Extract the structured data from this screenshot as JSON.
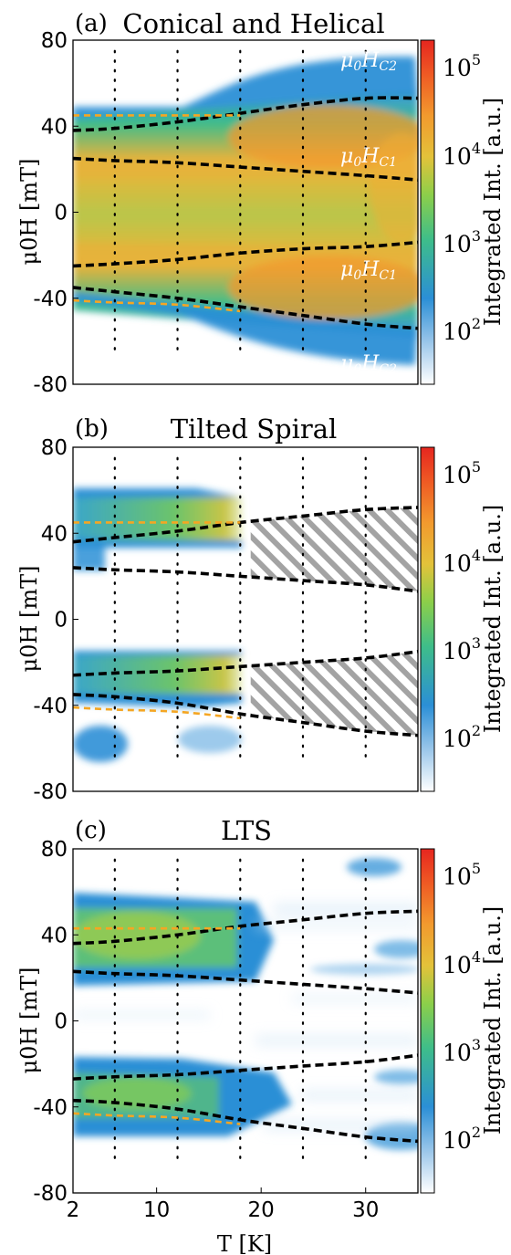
{
  "chart_data": [
    {
      "type": "heatmap",
      "panel": "(a)",
      "title": "Conical and Helical",
      "xlabel": "T [K]",
      "ylabel": "μ0H [mT]",
      "xlim": [
        2,
        35
      ],
      "ylim": [
        -80,
        80
      ],
      "xticks": [
        2,
        10,
        20,
        30
      ],
      "yticks": [
        80,
        40,
        0,
        -40,
        -80
      ],
      "colorbar": {
        "label": "Integrated Int. [a.u.]",
        "scale": "log",
        "ticks": [
          "10^5",
          "10^4",
          "10^3",
          "10^2"
        ]
      },
      "temperatures": [
        6,
        12,
        18,
        24,
        30
      ],
      "annotations": [
        {
          "text": "μ0HC2",
          "x": 31,
          "y": 62
        },
        {
          "text": "μ0HC1",
          "x": 31,
          "y": 33
        },
        {
          "text": "μ0HC1",
          "x": 31,
          "y": -30
        },
        {
          "text": "μ0HC2",
          "x": 31,
          "y": -66
        }
      ],
      "series": [
        {
          "color": "#000000",
          "x": [
            2,
            6,
            12,
            18,
            24,
            30,
            35
          ],
          "y": [
            38,
            39,
            42,
            46,
            50,
            53,
            53
          ]
        },
        {
          "color": "#000000",
          "x": [
            2,
            6,
            12,
            18,
            24,
            30,
            35
          ],
          "y": [
            25,
            24,
            23,
            21,
            19,
            17,
            15
          ]
        },
        {
          "color": "#000000",
          "x": [
            2,
            6,
            12,
            18,
            24,
            30,
            35
          ],
          "y": [
            -25,
            -24,
            -22,
            -19,
            -17,
            -16,
            -14
          ]
        },
        {
          "color": "#000000",
          "x": [
            2,
            6,
            12,
            18,
            24,
            30,
            35
          ],
          "y": [
            -35,
            -37,
            -40,
            -44,
            -48,
            -52,
            -54
          ]
        },
        {
          "color": "#f5a623",
          "x": [
            2,
            6,
            12,
            18
          ],
          "y": [
            45,
            45,
            45,
            45
          ]
        },
        {
          "color": "#f5a623",
          "x": [
            2,
            6,
            12,
            18
          ],
          "y": [
            -41,
            -42,
            -43,
            -46
          ]
        }
      ]
    },
    {
      "type": "heatmap",
      "panel": "(b)",
      "title": "Tilted Spiral",
      "xlabel": "",
      "ylabel": "μ0H [mT]",
      "xlim": [
        2,
        35
      ],
      "ylim": [
        -80,
        80
      ],
      "xticks": [
        2,
        10,
        20,
        30
      ],
      "yticks": [
        80,
        40,
        0,
        -40,
        -80
      ],
      "colorbar": {
        "label": "Integrated Int. [a.u.]",
        "scale": "log",
        "ticks": [
          "10^5",
          "10^4",
          "10^3",
          "10^2"
        ]
      },
      "temperatures": [
        6,
        12,
        18,
        24,
        30
      ],
      "series": [
        {
          "color": "#000000",
          "x": [
            2,
            6,
            12,
            18,
            24,
            30,
            35
          ],
          "y": [
            36,
            38,
            41,
            45,
            48,
            51,
            52
          ]
        },
        {
          "color": "#000000",
          "x": [
            2,
            6,
            12,
            18,
            24,
            30,
            35
          ],
          "y": [
            24,
            23,
            22,
            20,
            18,
            16,
            13
          ]
        },
        {
          "color": "#000000",
          "x": [
            2,
            6,
            12,
            18,
            24,
            30,
            35
          ],
          "y": [
            -26,
            -25,
            -24,
            -22,
            -20,
            -18,
            -15
          ]
        },
        {
          "color": "#000000",
          "x": [
            2,
            6,
            12,
            18,
            24,
            30,
            35
          ],
          "y": [
            -35,
            -36,
            -39,
            -44,
            -48,
            -52,
            -54
          ]
        },
        {
          "color": "#f5a623",
          "x": [
            2,
            6,
            12,
            18
          ],
          "y": [
            45,
            45,
            45,
            45
          ]
        },
        {
          "color": "#f5a623",
          "x": [
            2,
            6,
            12,
            18
          ],
          "y": [
            -41,
            -42,
            -43,
            -46
          ]
        }
      ]
    },
    {
      "type": "heatmap",
      "panel": "(c)",
      "title": "LTS",
      "xlabel": "T [K]",
      "ylabel": "μ0H [mT]",
      "xlim": [
        2,
        35
      ],
      "ylim": [
        -80,
        80
      ],
      "xticks": [
        2,
        10,
        20,
        30
      ],
      "yticks": [
        80,
        40,
        0,
        -40,
        -80
      ],
      "colorbar": {
        "label": "Integrated Int. [a.u.]",
        "scale": "log",
        "ticks": [
          "10^5",
          "10^4",
          "10^3",
          "10^2"
        ]
      },
      "temperatures": [
        6,
        12,
        18,
        24,
        30
      ],
      "series": [
        {
          "color": "#000000",
          "x": [
            2,
            6,
            12,
            18,
            24,
            30,
            35
          ],
          "y": [
            36,
            37,
            40,
            44,
            47,
            50,
            51
          ]
        },
        {
          "color": "#000000",
          "x": [
            2,
            6,
            12,
            18,
            24,
            30,
            35
          ],
          "y": [
            23,
            22,
            21,
            19,
            17,
            15,
            13
          ]
        },
        {
          "color": "#000000",
          "x": [
            2,
            6,
            12,
            18,
            24,
            30,
            35
          ],
          "y": [
            -27,
            -26,
            -25,
            -23,
            -21,
            -19,
            -16
          ]
        },
        {
          "color": "#000000",
          "x": [
            2,
            6,
            12,
            18,
            24,
            30,
            35
          ],
          "y": [
            -37,
            -38,
            -41,
            -46,
            -50,
            -54,
            -56
          ]
        },
        {
          "color": "#f5a623",
          "x": [
            2,
            6,
            12,
            18
          ],
          "y": [
            43,
            43,
            43,
            43
          ]
        },
        {
          "color": "#f5a623",
          "x": [
            2,
            6,
            12,
            18
          ],
          "y": [
            -43,
            -44,
            -45,
            -48
          ]
        }
      ]
    }
  ]
}
